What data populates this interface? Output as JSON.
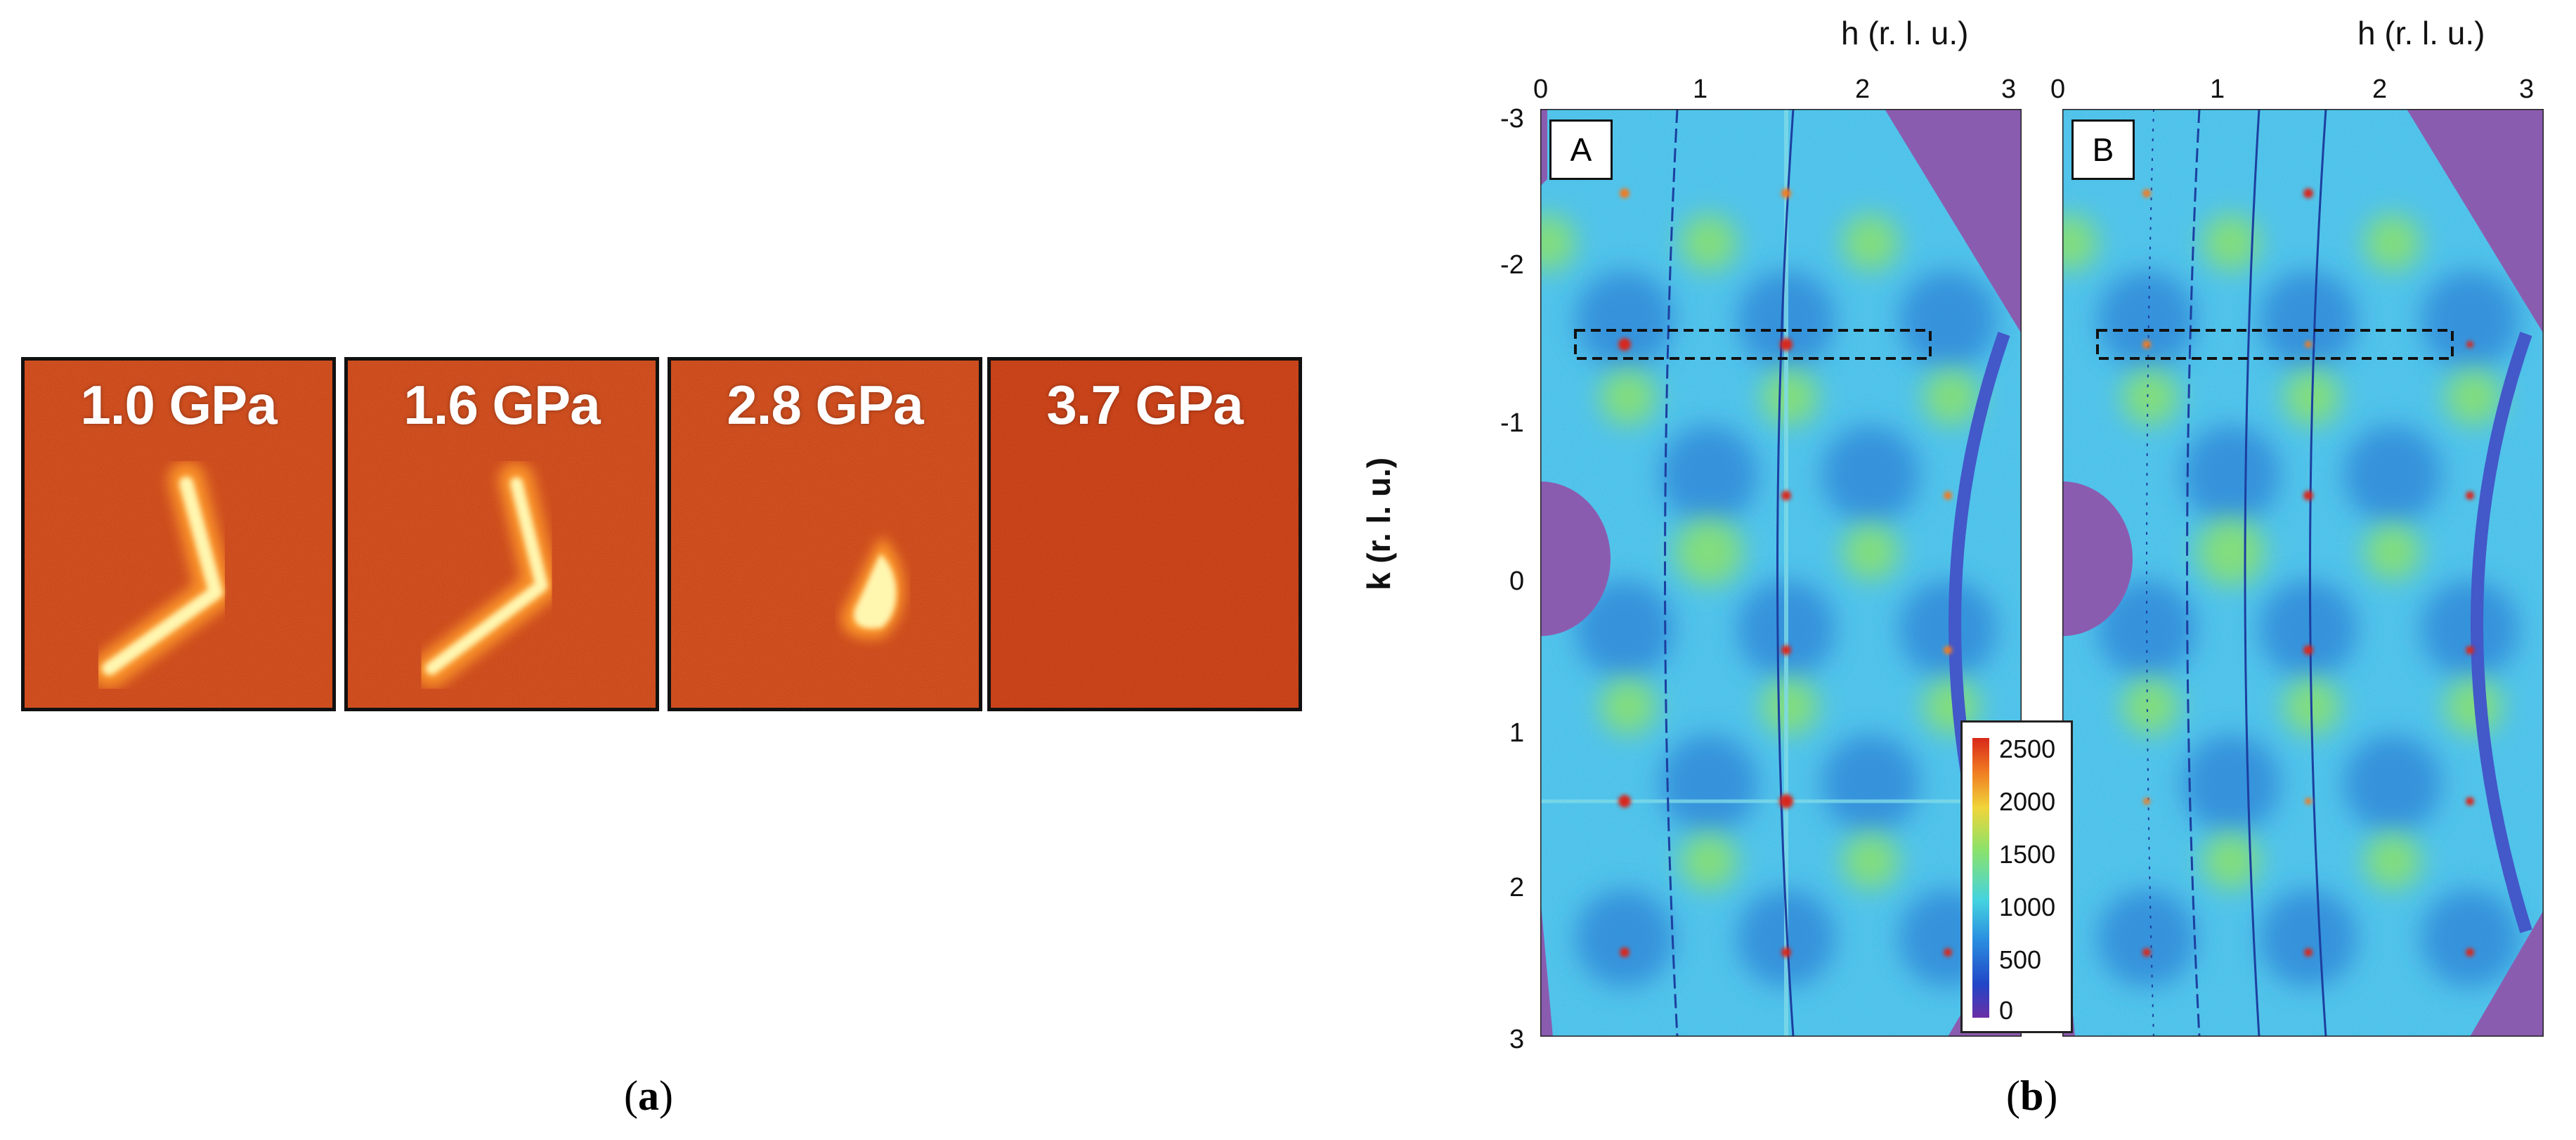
{
  "figure_a": {
    "panels": [
      {
        "pressure": "1.0 GPa",
        "shape": "v-full"
      },
      {
        "pressure": "1.6 GPa",
        "shape": "v-full"
      },
      {
        "pressure": "2.8 GPa",
        "shape": "blob"
      },
      {
        "pressure": "3.7 GPa",
        "shape": "none"
      }
    ],
    "caption_letter": "a"
  },
  "figure_b": {
    "x_axis_title": "h (r. l. u.)",
    "y_axis_title": "k (r. l. u.)",
    "x_ticks": [
      "0",
      "1",
      "2",
      "3"
    ],
    "y_ticks": [
      "-3",
      "-2",
      "-1",
      "0",
      "1",
      "2",
      "3"
    ],
    "map_labels": [
      "A",
      "B"
    ],
    "colorbar": {
      "ticks": [
        "2500",
        "2000",
        "1500",
        "1000",
        "500",
        "0"
      ],
      "colors": [
        "#6a2ea6",
        "#2146c7",
        "#2a8fe0",
        "#45d3e0",
        "#8be26b",
        "#f0d53a",
        "#f07b22",
        "#d8281a"
      ]
    },
    "caption_letter": "b"
  },
  "colors": {
    "diffraction_background": "#c43a14",
    "map_background": "#48c3e8",
    "masked_region": "#8a5cb0"
  }
}
